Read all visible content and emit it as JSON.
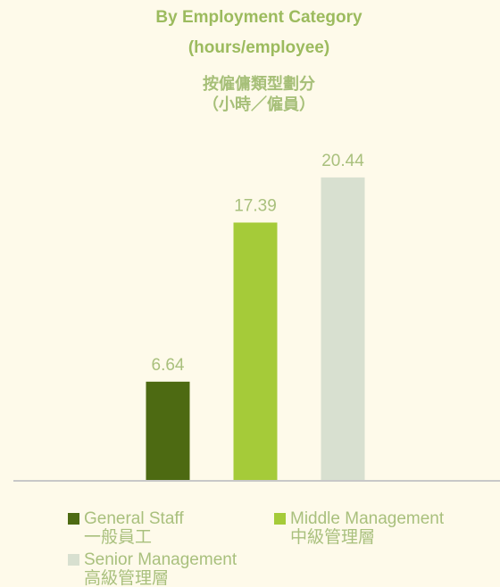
{
  "chart_data": {
    "type": "bar",
    "title": "By Employment Category",
    "subtitle": "(hours/employee)",
    "title_zh": "按僱傭類型劃分",
    "subtitle_zh": "（小時／僱員）",
    "series": [
      {
        "name": "General Staff",
        "name_zh": "一般員工",
        "color": "#4d6a12",
        "values": [
          6.64
        ]
      },
      {
        "name": "Middle Management",
        "name_zh": "中級管理層",
        "color": "#a5cb39",
        "values": [
          17.39
        ]
      },
      {
        "name": "Senior Management",
        "name_zh": "高級管理層",
        "color": "#d8e0d0",
        "values": [
          20.44
        ]
      }
    ],
    "ylim": [
      0,
      22
    ]
  }
}
